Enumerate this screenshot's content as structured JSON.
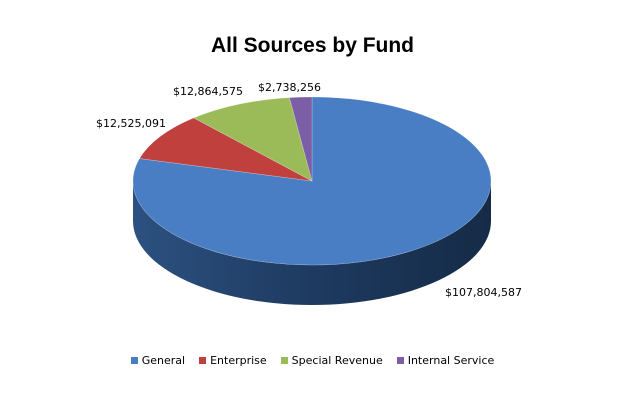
{
  "chart_data": {
    "type": "pie",
    "title": "All Sources by Fund",
    "categories": [
      "General",
      "Enterprise",
      "Special Revenue",
      "Internal Service"
    ],
    "values": [
      107804587,
      12525091,
      12864575,
      2738256
    ],
    "value_labels": [
      "$107,804,587",
      "$12,525,091",
      "$12,864,575",
      "$2,738,256"
    ],
    "colors": [
      "#4a7ec4",
      "#c0403d",
      "#9bbb59",
      "#7b5ea6"
    ],
    "three_d": true,
    "legend_position": "bottom"
  }
}
